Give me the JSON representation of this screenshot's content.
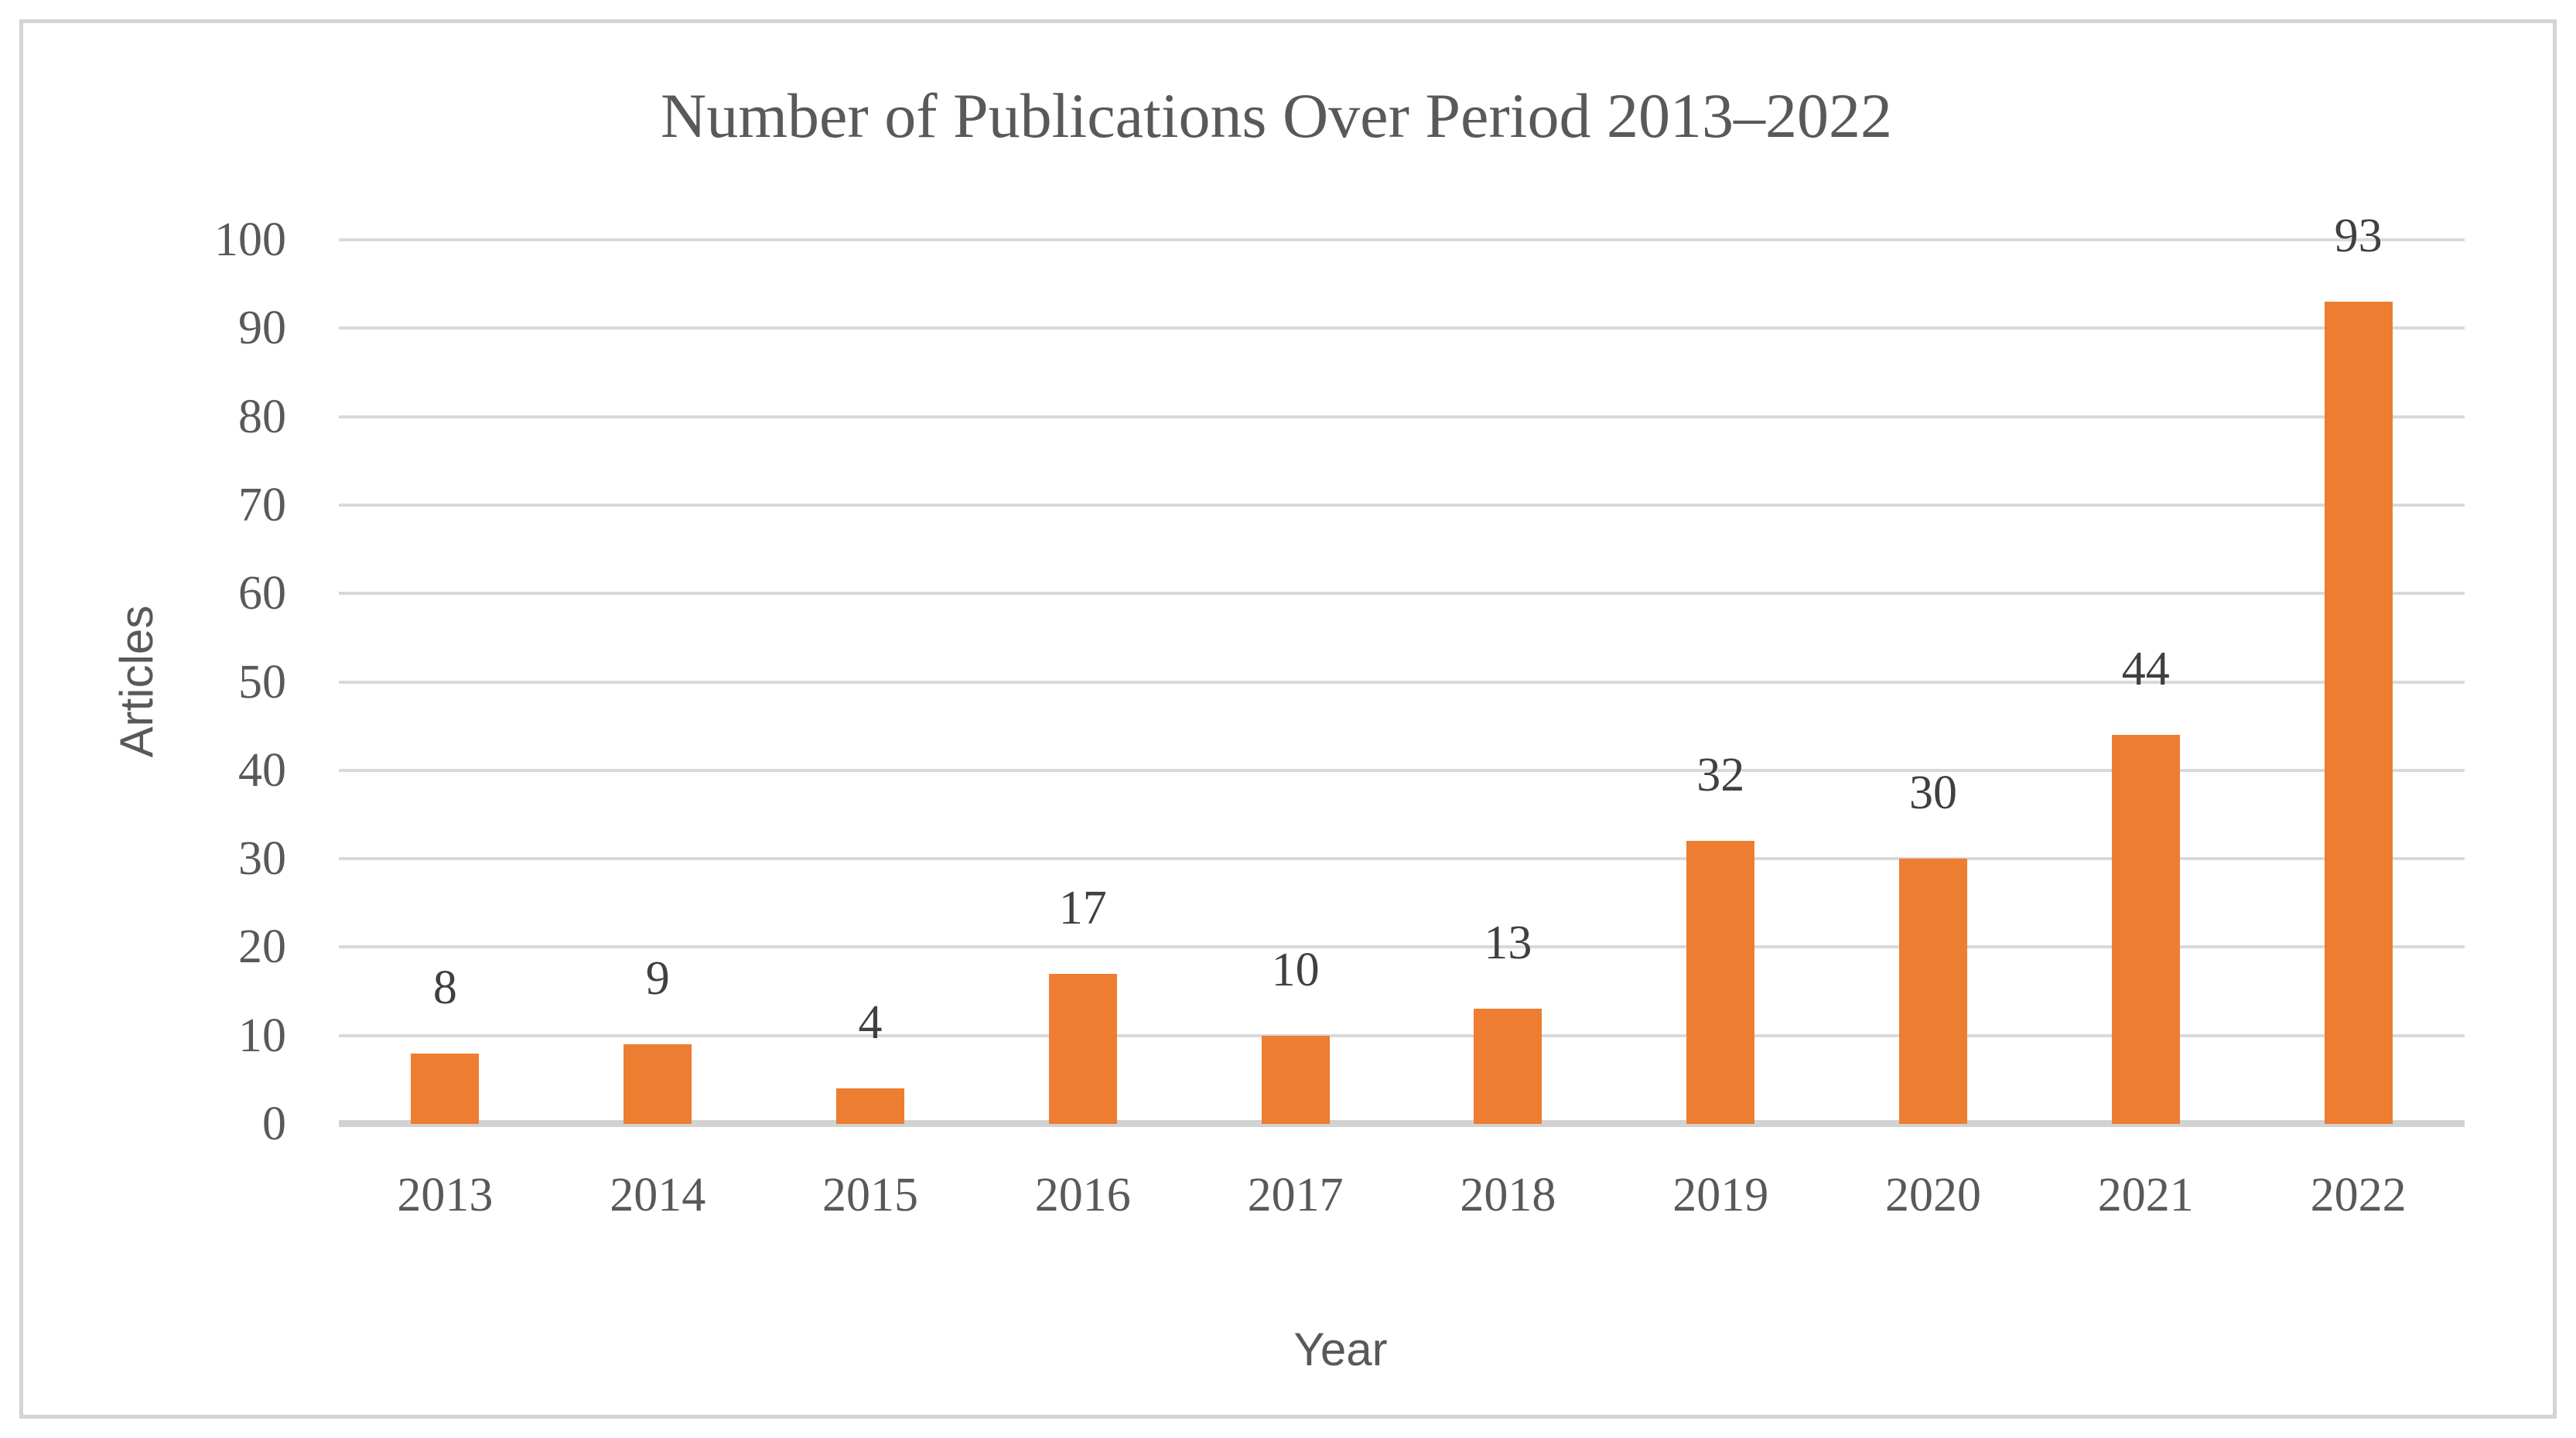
{
  "chart_data": {
    "type": "bar",
    "title": "Number of Publications Over Period 2013–2022",
    "xlabel": "Year",
    "ylabel": "Articles",
    "categories": [
      "2013",
      "2014",
      "2015",
      "2016",
      "2017",
      "2018",
      "2019",
      "2020",
      "2021",
      "2022"
    ],
    "values": [
      8,
      9,
      4,
      17,
      10,
      13,
      32,
      30,
      44,
      93
    ],
    "data_labels": [
      8,
      9,
      4,
      17,
      10,
      13,
      32,
      30,
      44,
      93
    ],
    "ylim": [
      0,
      100
    ],
    "ytick_step": 10,
    "yticks": [
      0,
      10,
      20,
      30,
      40,
      50,
      60,
      70,
      80,
      90,
      100
    ],
    "grid": "horizontal",
    "legend": "none",
    "bar_color": "#ed7d31",
    "gridline_color": "#d9d9d9",
    "axis_line_color": "#d2d2d2",
    "title_color": "#595959",
    "tick_label_color": "#595959",
    "data_label_color": "#404040",
    "frame_border_color": "#d4d4d4"
  }
}
